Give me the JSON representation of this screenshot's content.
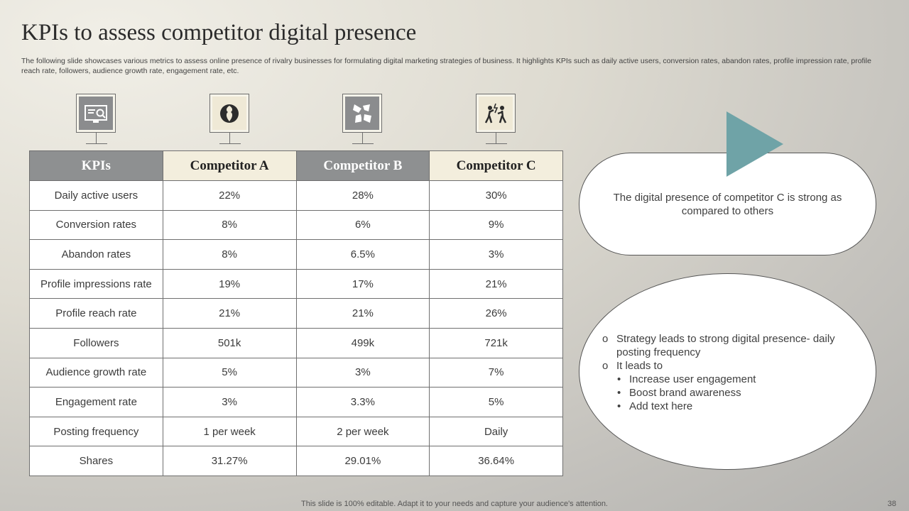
{
  "title": "KPIs to assess competitor digital presence",
  "subtitle": "The following slide showcases various metrics to assess online presence of rivalry businesses for formulating digital marketing strategies of business. It highlights KPIs such as daily active users, conversion rates, abandon rates, profile impression rate, profile reach rate, followers, audience growth rate, engagement rate, etc.",
  "icons": [
    "monitor-search-icon",
    "head-profiles-icon",
    "shattered-glass-icon",
    "people-conflict-icon"
  ],
  "table": {
    "headers": [
      "KPIs",
      "Competitor A",
      "Competitor B",
      "Competitor C"
    ],
    "rows": [
      [
        "Daily active users",
        "22%",
        "28%",
        "30%"
      ],
      [
        "Conversion rates",
        "8%",
        "6%",
        "9%"
      ],
      [
        "Abandon rates",
        "8%",
        "6.5%",
        "3%"
      ],
      [
        "Profile impressions rate",
        "19%",
        "17%",
        "21%"
      ],
      [
        "Profile reach rate",
        "21%",
        "21%",
        "26%"
      ],
      [
        "Followers",
        "501k",
        "499k",
        "721k"
      ],
      [
        "Audience growth rate",
        "5%",
        "3%",
        "7%"
      ],
      [
        "Engagement rate",
        "3%",
        "3.3%",
        "5%"
      ],
      [
        "Posting frequency",
        "1 per week",
        "2 per week",
        "Daily"
      ],
      [
        "Shares",
        "31.27%",
        "29.01%",
        "36.64%"
      ]
    ]
  },
  "callout": {
    "text": "The digital presence of competitor C is strong as compared to others"
  },
  "notes": {
    "point1": "Strategy leads to strong digital presence- daily posting frequency",
    "point2": "It leads to",
    "sub_points": [
      "Increase user engagement",
      "Boost brand awareness",
      "Add text here"
    ],
    "bullet_circle": "o",
    "bullet_dot": "•"
  },
  "footer": "This slide is 100% editable. Adapt it to your needs and capture your audience's attention.",
  "page_number": "38",
  "colors": {
    "header_dark": "#8e9091",
    "header_light": "#f3eedd",
    "accent_teal": "#6fa3a7"
  }
}
